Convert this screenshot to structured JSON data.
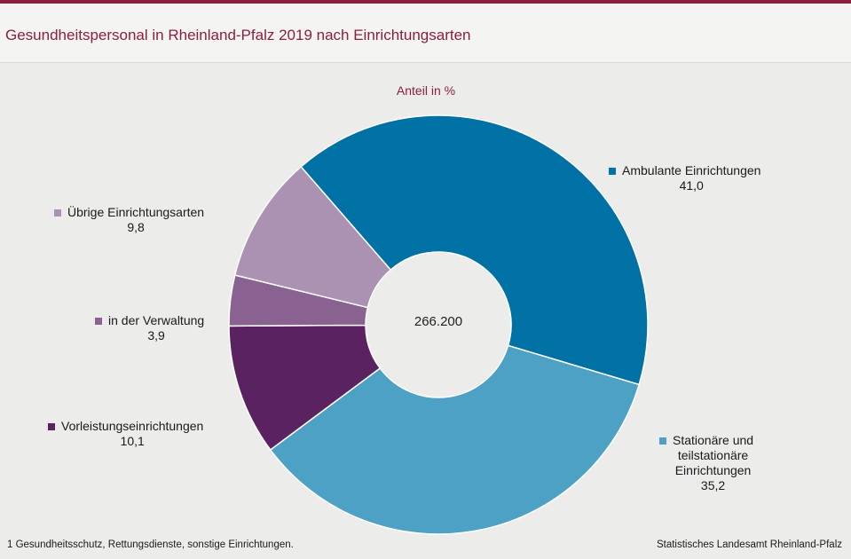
{
  "header": {
    "title": "Gesundheitspersonal in Rheinland-Pfalz 2019 nach Einrichtungsarten"
  },
  "colors": {
    "brand": "#8c1f3c",
    "ambulante": "#0071a4",
    "stationaere": "#4da1c4",
    "vorleistung": "#5b2262",
    "verwaltung": "#8a6291",
    "uebrige": "#ab92b2"
  },
  "chart_data": {
    "type": "pie",
    "subtitle": "Anteil in %",
    "center_label": "266.200",
    "slices": [
      {
        "key": "ambulante",
        "name": "Ambulante  Einrichtungen",
        "name_lines": [
          "Ambulante  Einrichtungen"
        ],
        "value": 41.0,
        "value_label": "41,0",
        "color": "#0071a4"
      },
      {
        "key": "stationaere",
        "name": "Stationäre und teilstationäre Einrichtungen",
        "name_lines": [
          "Stationäre und",
          "teilstationäre",
          "Einrichtungen"
        ],
        "value": 35.2,
        "value_label": "35,2",
        "color": "#4da1c4"
      },
      {
        "key": "vorleistung",
        "name": "Vorleistungseinrichtungen",
        "name_lines": [
          "Vorleistungseinrichtungen"
        ],
        "value": 10.1,
        "value_label": "10,1",
        "color": "#5b2262"
      },
      {
        "key": "verwaltung",
        "name": "in der Verwaltung",
        "name_lines": [
          "in der Verwaltung"
        ],
        "value": 3.9,
        "value_label": "3,9",
        "color": "#8a6291"
      },
      {
        "key": "uebrige",
        "name": "Übrige Einrichtungsarten",
        "name_lines": [
          "Übrige Einrichtungsarten"
        ],
        "value": 9.8,
        "value_label": "9,8",
        "color": "#ab92b2"
      }
    ]
  },
  "footer": {
    "footnote": "1 Gesundheitsschutz,  Rettungsdienste,  sonstige Einrichtungen.",
    "source": "Statistisches Landesamt Rheinland-Pfalz"
  }
}
